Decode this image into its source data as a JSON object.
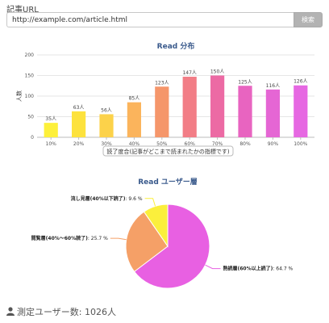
{
  "form": {
    "url_label": "記事URL",
    "url_value": "http://example.com/article.html",
    "search_label": "検索"
  },
  "chart_data": [
    {
      "type": "bar",
      "title": "Read 分布",
      "ylabel": "人数",
      "xlabel": "読了度合(記事がどこまで読まれたかの指標です)",
      "ylim": [
        0,
        200
      ],
      "yticks": [
        0,
        50,
        100,
        150,
        200
      ],
      "grid": true,
      "categories": [
        "10%",
        "20%",
        "30%",
        "40%",
        "50%",
        "60%",
        "70%",
        "80%",
        "90%",
        "100%"
      ],
      "values": [
        35,
        63,
        56,
        85,
        123,
        147,
        150,
        125,
        116,
        126
      ],
      "value_labels": [
        "35人",
        "63人",
        "56人",
        "85人",
        "123人",
        "147人",
        "150人",
        "125人",
        "116人",
        "126人"
      ],
      "colors": [
        "#fdf03a",
        "#fde23d",
        "#fcd24a",
        "#fbb45c",
        "#f5966a",
        "#f27d86",
        "#ec6aa4",
        "#e864c0",
        "#e566d4",
        "#e668e2"
      ]
    },
    {
      "type": "pie",
      "title": "Read ユーザー層",
      "slices": [
        {
          "name": "熟読層(60%以上読了)",
          "value": 64.7,
          "value_text": "64.7 %",
          "color": "#e860e2"
        },
        {
          "name": "閲覧層(40%〜60%読了)",
          "value": 25.7,
          "value_text": "25.7 %",
          "color": "#f5a067"
        },
        {
          "name": "流し見層(40%以下読了)",
          "value": 9.6,
          "value_text": "9.6 %",
          "color": "#fbef3c"
        }
      ]
    }
  ],
  "footer": {
    "measured_users": "測定ユーザー数: 1026人",
    "icon": "user-icon"
  }
}
